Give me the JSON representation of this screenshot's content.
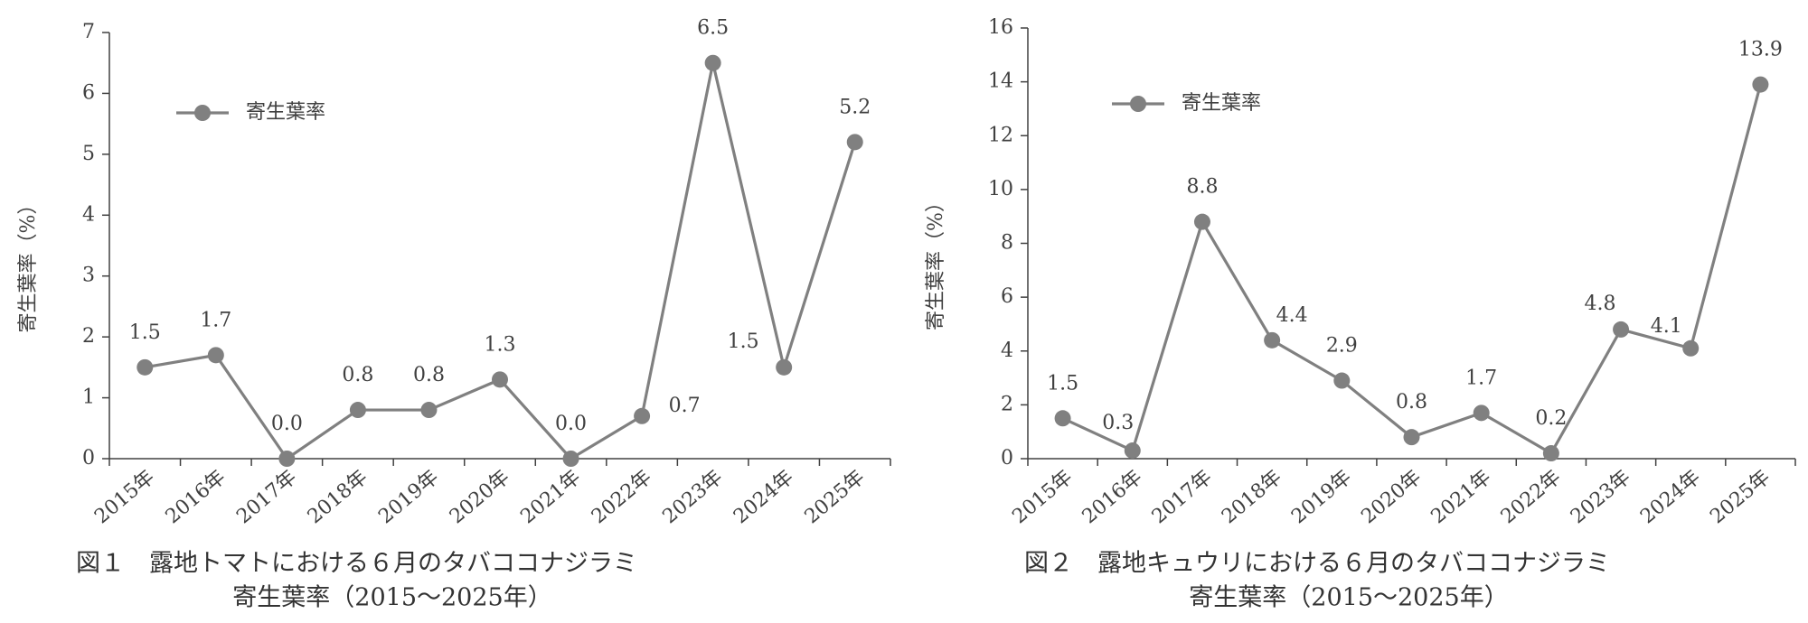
{
  "chart_data": [
    {
      "type": "line",
      "title": "図１　露地トマトにおける６月のタバココナジラミ",
      "subtitle": "寄生葉率（2015～2025年）",
      "y_label": "寄生葉率（%）",
      "categories": [
        "2015年",
        "2016年",
        "2017年",
        "2018年",
        "2019年",
        "2020年",
        "2021年",
        "2022年",
        "2023年",
        "2024年",
        "2025年"
      ],
      "series": [
        {
          "name": "寄生葉率",
          "color": "#808080",
          "values": [
            1.5,
            1.7,
            0,
            0.8,
            0.8,
            1.3,
            0,
            0.7,
            6.5,
            1.5,
            5.2
          ],
          "value_labels": [
            "1.5",
            "1.7",
            "0.0",
            "0.8",
            "0.8",
            "1.3",
            "0.0",
            "0.7",
            "6.5",
            "1.5",
            "5.2"
          ]
        }
      ],
      "ylim": [
        0,
        7
      ],
      "yticks": [
        0,
        1,
        2,
        3,
        4,
        5,
        6,
        7
      ]
    },
    {
      "type": "line",
      "title": "図２　露地キュウリにおける６月のタバココナジラミ",
      "subtitle": "寄生葉率（2015～2025年）",
      "y_label": "寄生葉率（%）",
      "categories": [
        "2015年",
        "2016年",
        "2017年",
        "2018年",
        "2019年",
        "2020年",
        "2021年",
        "2022年",
        "2023年",
        "2024年",
        "2025年"
      ],
      "series": [
        {
          "name": "寄生葉率",
          "color": "#808080",
          "values": [
            1.5,
            0.3,
            8.8,
            4.4,
            2.9,
            0.8,
            1.7,
            0.2,
            4.8,
            4.1,
            13.9
          ],
          "value_labels": [
            "1.5",
            "0.3",
            "8.8",
            "4.4",
            "2.9",
            "0.8",
            "1.7",
            "0.2",
            "4.8",
            "4.1",
            "13.9"
          ]
        }
      ],
      "ylim": [
        0,
        16
      ],
      "yticks": [
        0,
        2,
        4,
        6,
        8,
        10,
        12,
        14,
        16
      ]
    }
  ]
}
